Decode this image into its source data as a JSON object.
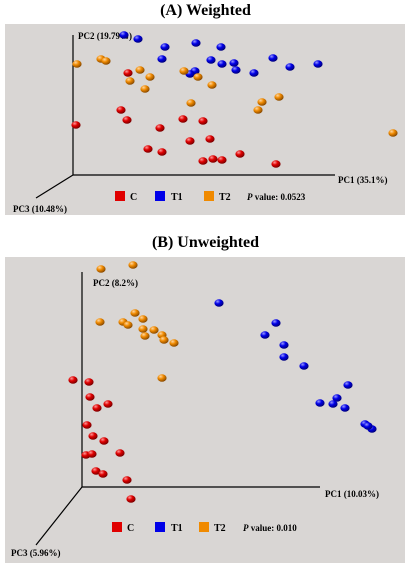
{
  "colors": {
    "C": "#e00000",
    "T1": "#0000e8",
    "T2": "#f08a00",
    "background": "#d9d6d4"
  },
  "chart_data": [
    {
      "type": "scatter",
      "title": "(A) Weighted",
      "axes": {
        "pc1": "PC1 (35.1%)",
        "pc2": "PC2 (19.79%)",
        "pc3": "PC3 (10.48%)"
      },
      "legend": {
        "items": [
          {
            "key": "C",
            "label": "C"
          },
          {
            "key": "T1",
            "label": "T1"
          },
          {
            "key": "T2",
            "label": "T2"
          }
        ],
        "p_label": "P",
        "p_value_text": " value: 0.0523"
      },
      "points": [
        {
          "group": "T1",
          "p": [
            124,
            35
          ]
        },
        {
          "group": "T1",
          "p": [
            138,
            39
          ]
        },
        {
          "group": "T1",
          "p": [
            165,
            47
          ]
        },
        {
          "group": "T1",
          "p": [
            196,
            43
          ]
        },
        {
          "group": "T1",
          "p": [
            221,
            47
          ]
        },
        {
          "group": "T1",
          "p": [
            162,
            59
          ]
        },
        {
          "group": "T1",
          "p": [
            211,
            60
          ]
        },
        {
          "group": "T1",
          "p": [
            222,
            64
          ]
        },
        {
          "group": "T1",
          "p": [
            234,
            63
          ]
        },
        {
          "group": "T1",
          "p": [
            236,
            70
          ]
        },
        {
          "group": "T1",
          "p": [
            254,
            73
          ]
        },
        {
          "group": "T1",
          "p": [
            273,
            58
          ]
        },
        {
          "group": "T1",
          "p": [
            290,
            67
          ]
        },
        {
          "group": "T1",
          "p": [
            318,
            64
          ]
        },
        {
          "group": "T1",
          "p": [
            195,
            71
          ]
        },
        {
          "group": "T1",
          "p": [
            190,
            74
          ]
        },
        {
          "group": "T2",
          "p": [
            77,
            64
          ]
        },
        {
          "group": "T2",
          "p": [
            101,
            59
          ]
        },
        {
          "group": "T2",
          "p": [
            106,
            61
          ]
        },
        {
          "group": "T2",
          "p": [
            140,
            70
          ]
        },
        {
          "group": "T2",
          "p": [
            150,
            77
          ]
        },
        {
          "group": "T2",
          "p": [
            130,
            81
          ]
        },
        {
          "group": "T2",
          "p": [
            145,
            89
          ]
        },
        {
          "group": "T2",
          "p": [
            184,
            71
          ]
        },
        {
          "group": "T2",
          "p": [
            198,
            77
          ]
        },
        {
          "group": "T2",
          "p": [
            212,
            85
          ]
        },
        {
          "group": "T2",
          "p": [
            191,
            103
          ]
        },
        {
          "group": "T2",
          "p": [
            262,
            102
          ]
        },
        {
          "group": "T2",
          "p": [
            279,
            97
          ]
        },
        {
          "group": "T2",
          "p": [
            258,
            110
          ]
        },
        {
          "group": "T2",
          "p": [
            393,
            133
          ]
        },
        {
          "group": "C",
          "p": [
            128,
            73
          ]
        },
        {
          "group": "C",
          "p": [
            121,
            110
          ]
        },
        {
          "group": "C",
          "p": [
            127,
            120
          ]
        },
        {
          "group": "C",
          "p": [
            76,
            125
          ]
        },
        {
          "group": "C",
          "p": [
            160,
            128
          ]
        },
        {
          "group": "C",
          "p": [
            183,
            119
          ]
        },
        {
          "group": "C",
          "p": [
            203,
            121
          ]
        },
        {
          "group": "C",
          "p": [
            210,
            139
          ]
        },
        {
          "group": "C",
          "p": [
            148,
            149
          ]
        },
        {
          "group": "C",
          "p": [
            162,
            152
          ]
        },
        {
          "group": "C",
          "p": [
            190,
            141
          ]
        },
        {
          "group": "C",
          "p": [
            203,
            161
          ]
        },
        {
          "group": "C",
          "p": [
            213,
            159
          ]
        },
        {
          "group": "C",
          "p": [
            222,
            160
          ]
        },
        {
          "group": "C",
          "p": [
            240,
            154
          ]
        },
        {
          "group": "C",
          "p": [
            276,
            164
          ]
        }
      ]
    },
    {
      "type": "scatter",
      "title": "(B) Unweighted",
      "axes": {
        "pc1": "PC1 (10.03%)",
        "pc2": "PC2 (8.2%)",
        "pc3": "PC3 (5.96%)"
      },
      "legend": {
        "items": [
          {
            "key": "C",
            "label": "C"
          },
          {
            "key": "T1",
            "label": "T1"
          },
          {
            "key": "T2",
            "label": "T2"
          }
        ],
        "p_label": "P",
        "p_value_text": " value: 0.010"
      },
      "points": [
        {
          "group": "T2",
          "p": [
            101,
            269
          ]
        },
        {
          "group": "T2",
          "p": [
            133,
            265
          ]
        },
        {
          "group": "T2",
          "p": [
            135,
            313
          ]
        },
        {
          "group": "T2",
          "p": [
            100,
            322
          ]
        },
        {
          "group": "T2",
          "p": [
            123,
            322
          ]
        },
        {
          "group": "T2",
          "p": [
            128,
            325
          ]
        },
        {
          "group": "T2",
          "p": [
            143,
            319
          ]
        },
        {
          "group": "T2",
          "p": [
            143,
            329
          ]
        },
        {
          "group": "T2",
          "p": [
            154,
            330
          ]
        },
        {
          "group": "T2",
          "p": [
            145,
            336
          ]
        },
        {
          "group": "T2",
          "p": [
            162,
            335
          ]
        },
        {
          "group": "T2",
          "p": [
            174,
            343
          ]
        },
        {
          "group": "T2",
          "p": [
            164,
            340
          ]
        },
        {
          "group": "T2",
          "p": [
            162,
            378
          ]
        },
        {
          "group": "T1",
          "p": [
            219,
            303
          ]
        },
        {
          "group": "T1",
          "p": [
            276,
            323
          ]
        },
        {
          "group": "T1",
          "p": [
            265,
            335
          ]
        },
        {
          "group": "T1",
          "p": [
            284,
            345
          ]
        },
        {
          "group": "T1",
          "p": [
            284,
            357
          ]
        },
        {
          "group": "T1",
          "p": [
            304,
            366
          ]
        },
        {
          "group": "T1",
          "p": [
            348,
            385
          ]
        },
        {
          "group": "T1",
          "p": [
            337,
            398
          ]
        },
        {
          "group": "T1",
          "p": [
            320,
            403
          ]
        },
        {
          "group": "T1",
          "p": [
            333,
            404
          ]
        },
        {
          "group": "T1",
          "p": [
            345,
            408
          ]
        },
        {
          "group": "T1",
          "p": [
            365,
            424
          ]
        },
        {
          "group": "T1",
          "p": [
            372,
            429
          ]
        },
        {
          "group": "T1",
          "p": [
            368,
            426
          ]
        },
        {
          "group": "C",
          "p": [
            73,
            380
          ]
        },
        {
          "group": "C",
          "p": [
            89,
            382
          ]
        },
        {
          "group": "C",
          "p": [
            90,
            397
          ]
        },
        {
          "group": "C",
          "p": [
            97,
            408
          ]
        },
        {
          "group": "C",
          "p": [
            108,
            404
          ]
        },
        {
          "group": "C",
          "p": [
            87,
            425
          ]
        },
        {
          "group": "C",
          "p": [
            93,
            436
          ]
        },
        {
          "group": "C",
          "p": [
            104,
            441
          ]
        },
        {
          "group": "C",
          "p": [
            120,
            453
          ]
        },
        {
          "group": "C",
          "p": [
            86,
            455
          ]
        },
        {
          "group": "C",
          "p": [
            92,
            454
          ]
        },
        {
          "group": "C",
          "p": [
            96,
            471
          ]
        },
        {
          "group": "C",
          "p": [
            103,
            474
          ]
        },
        {
          "group": "C",
          "p": [
            127,
            480
          ]
        },
        {
          "group": "C",
          "p": [
            131,
            499
          ]
        }
      ]
    }
  ]
}
